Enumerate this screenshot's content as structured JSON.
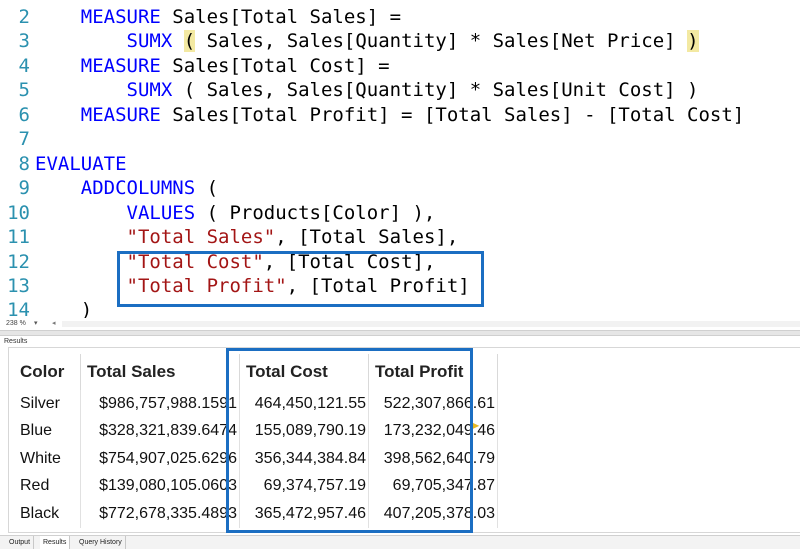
{
  "editor": {
    "lines": [
      {
        "num": "2",
        "parts": [
          {
            "t": "    "
          },
          {
            "t": "MEASURE",
            "c": "kw"
          },
          {
            "t": " Sales[Total Sales] ="
          }
        ]
      },
      {
        "num": "3",
        "parts": [
          {
            "t": "        "
          },
          {
            "t": "SUMX",
            "c": "kw"
          },
          {
            "t": " "
          },
          {
            "t": "(",
            "c": "paren-hl"
          },
          {
            "t": " Sales, Sales[Quantity] * Sales[Net Price] "
          },
          {
            "t": ")",
            "c": "paren-hl"
          }
        ]
      },
      {
        "num": "4",
        "parts": [
          {
            "t": "    "
          },
          {
            "t": "MEASURE",
            "c": "kw"
          },
          {
            "t": " Sales[Total Cost] ="
          }
        ]
      },
      {
        "num": "5",
        "parts": [
          {
            "t": "        "
          },
          {
            "t": "SUMX",
            "c": "kw"
          },
          {
            "t": " ( Sales, Sales[Quantity] * Sales[Unit Cost] )"
          }
        ]
      },
      {
        "num": "6",
        "parts": [
          {
            "t": "    "
          },
          {
            "t": "MEASURE",
            "c": "kw"
          },
          {
            "t": " Sales[Total Profit] = [Total Sales] - [Total Cost]"
          }
        ]
      },
      {
        "num": "7",
        "parts": []
      },
      {
        "num": "8",
        "parts": [
          {
            "t": "EVALUATE",
            "c": "kw"
          }
        ]
      },
      {
        "num": "9",
        "parts": [
          {
            "t": "    "
          },
          {
            "t": "ADDCOLUMNS",
            "c": "kw"
          },
          {
            "t": " ("
          }
        ]
      },
      {
        "num": "10",
        "parts": [
          {
            "t": "        "
          },
          {
            "t": "VALUES",
            "c": "kw"
          },
          {
            "t": " ( Products[Color] ),"
          }
        ]
      },
      {
        "num": "11",
        "parts": [
          {
            "t": "        "
          },
          {
            "t": "\"Total Sales\"",
            "c": "str"
          },
          {
            "t": ", [Total Sales],"
          }
        ]
      },
      {
        "num": "12",
        "parts": [
          {
            "t": "        "
          },
          {
            "t": "\"Total Cost\"",
            "c": "str"
          },
          {
            "t": ", [Total Cost],"
          }
        ]
      },
      {
        "num": "13",
        "parts": [
          {
            "t": "        "
          },
          {
            "t": "\"Total Profit\"",
            "c": "str"
          },
          {
            "t": ", [Total Profit]"
          }
        ]
      },
      {
        "num": "14",
        "parts": [
          {
            "t": "    )"
          }
        ]
      }
    ]
  },
  "zoom": {
    "level": "238 %",
    "dropdown": "▾",
    "scroll_left": "◂"
  },
  "results": {
    "label": "Results",
    "columns": [
      "Color",
      "Total Sales",
      "Total Cost",
      "Total Profit"
    ],
    "rows": [
      [
        "Silver",
        "$986,757,988.1591",
        "464,450,121.55",
        "522,307,866.61"
      ],
      [
        "Blue",
        "$328,321,839.6474",
        "155,089,790.19",
        "173,232,049.46"
      ],
      [
        "White",
        "$754,907,025.6296",
        "356,344,384.84",
        "398,562,640.79"
      ],
      [
        "Red",
        "$139,080,105.0603",
        "69,374,757.19",
        "69,705,347.87"
      ],
      [
        "Black",
        "$772,678,335.4893",
        "365,472,957.46",
        "407,205,378.03"
      ]
    ]
  },
  "bottom_tabs": [
    {
      "label": "Output",
      "active": false
    },
    {
      "label": "Results",
      "active": true
    },
    {
      "label": "Query History",
      "active": false
    }
  ],
  "colors": {
    "keyword": "#0000ff",
    "string": "#a31515",
    "line_number": "#2b91af",
    "highlight_box": "#1b6ec2",
    "bracket_match": "#f3e9a2"
  }
}
